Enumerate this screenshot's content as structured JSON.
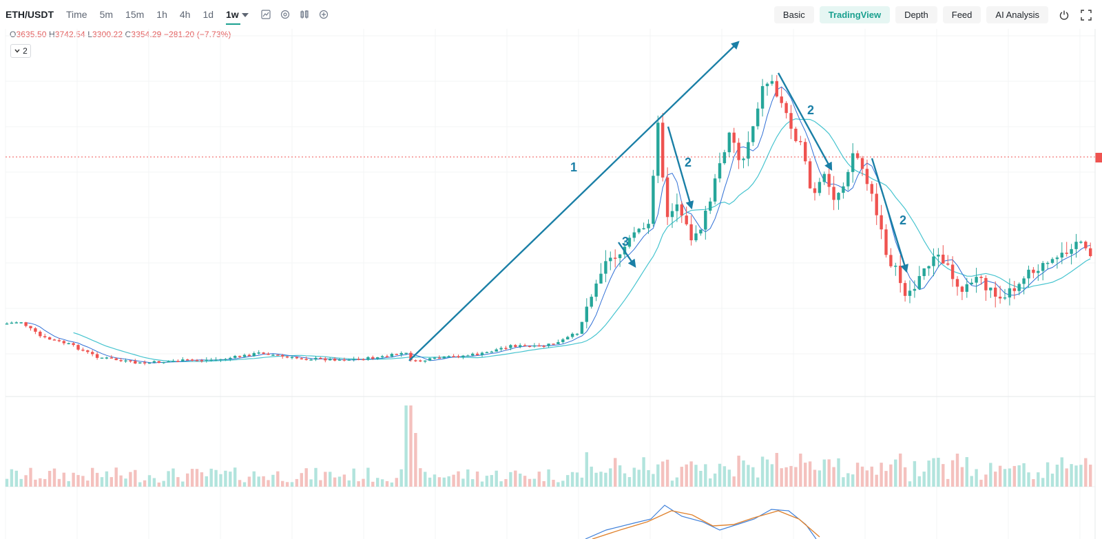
{
  "toolbar": {
    "symbol": "ETH/USDT",
    "timeframes": [
      "Time",
      "5m",
      "15m",
      "1h",
      "4h",
      "1d",
      "1w"
    ],
    "active_timeframe": "1w",
    "icons": [
      "indicator-icon",
      "settings-icon",
      "compare-icon",
      "add-icon"
    ]
  },
  "views": {
    "items": [
      "Basic",
      "TradingView",
      "Depth",
      "Feed",
      "AI Analysis"
    ],
    "active": "TradingView",
    "icons": [
      "power-icon",
      "fullscreen-icon"
    ]
  },
  "ohlc": {
    "o_label": "O",
    "o_value": "3635.50",
    "h_label": "H",
    "h_value": "3742.54",
    "l_label": "L",
    "l_value": "3300.22",
    "c_label": "C",
    "c_value": "3354.29",
    "change": "−281.20 (−7.73%)"
  },
  "indicator_toggle": {
    "count": "2"
  },
  "annotations": {
    "label_1": "1",
    "label_2": "2",
    "label_3": "3"
  },
  "colors": {
    "up": "#26a69a",
    "down": "#ef5350",
    "accent": "#1aa08f",
    "annotation": "#1a7fa6",
    "ma_fast": "#2f6fd6",
    "ma_slow": "#46c4cf"
  },
  "chart_data": {
    "type": "candlestick",
    "symbol": "ETH/USDT",
    "interval": "1w",
    "last_candle": {
      "open": 3635.5,
      "high": 3742.54,
      "low": 3300.22,
      "close": 3354.29,
      "change": -281.2,
      "change_pct": -7.73
    }
  }
}
